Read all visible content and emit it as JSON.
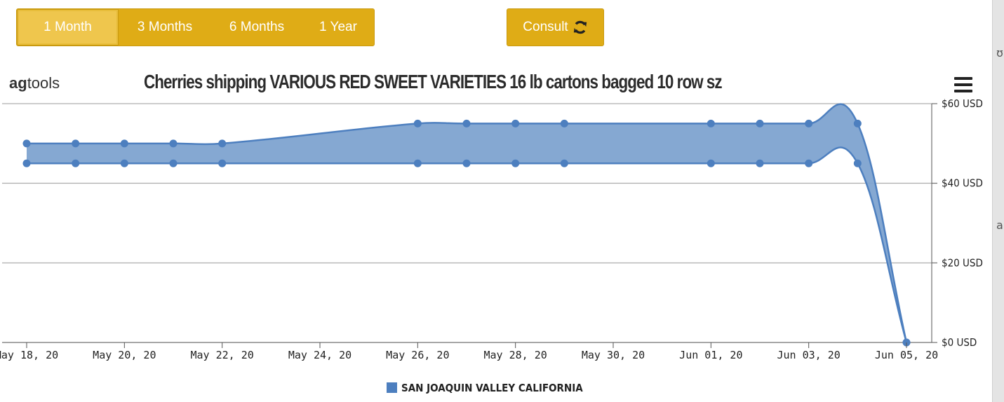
{
  "range_buttons": [
    "1 Month",
    "3 Months",
    "6 Months",
    "1 Year"
  ],
  "active_range": "1 Month",
  "consult_label": "Consult",
  "brand": {
    "part1": "ag",
    "part2": "tools"
  },
  "edge_text": {
    "top": "ʊ",
    "mid": "a"
  },
  "colors": {
    "button": "#dfac16",
    "button_active": "#efc64d",
    "series_fill": "#7ea3d0",
    "series_line": "#4d7fbf"
  },
  "chart_data": {
    "type": "area",
    "subtype": "arearange",
    "title": "Cherries shipping VARIOUS RED SWEET VARIETIES 16 lb cartons bagged 10 row sz",
    "x_dates": [
      "2020-05-18",
      "2020-05-19",
      "2020-05-20",
      "2020-05-21",
      "2020-05-22",
      "2020-05-26",
      "2020-05-27",
      "2020-05-28",
      "2020-05-29",
      "2020-06-01",
      "2020-06-02",
      "2020-06-03",
      "2020-06-04",
      "2020-06-05"
    ],
    "series": [
      {
        "name": "SAN JOAQUIN VALLEY CALIFORNIA",
        "low": [
          45,
          45,
          45,
          45,
          45,
          45,
          45,
          45,
          45,
          45,
          45,
          45,
          45,
          0
        ],
        "high": [
          50,
          50,
          50,
          50,
          50,
          55,
          55,
          55,
          55,
          55,
          55,
          55,
          55,
          0
        ]
      }
    ],
    "x_tick_labels": [
      "May 18, 20",
      "May 20, 20",
      "May 22, 20",
      "May 24, 20",
      "May 26, 20",
      "May 28, 20",
      "May 30, 20",
      "Jun 01, 20",
      "Jun 03, 20",
      "Jun 05, 20"
    ],
    "y_tick_labels": [
      "$0 USD",
      "$20 USD",
      "$40 USD",
      "$60 USD"
    ],
    "ylim": [
      0,
      60
    ],
    "x_range": [
      "2020-05-18",
      "2020-06-05"
    ],
    "grid": true,
    "legend_position": "bottom-center"
  }
}
